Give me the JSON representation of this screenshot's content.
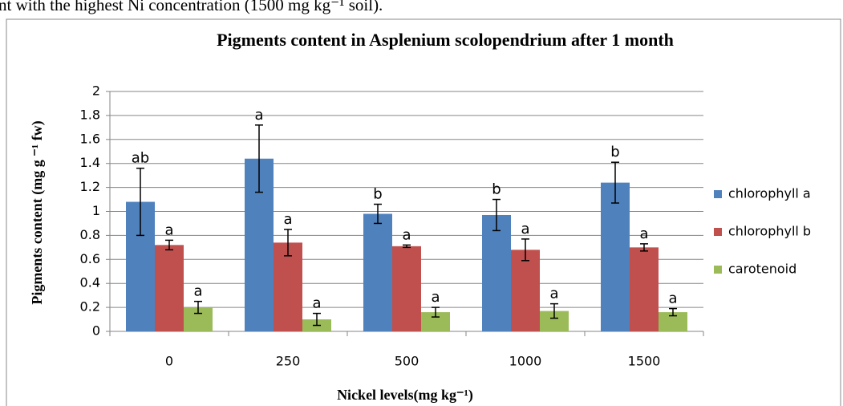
{
  "header_text": "nt with the highest Ni concentration (1500 mg kg⁻¹ soil).",
  "chart_data": {
    "type": "bar",
    "title": "Pigments content in Asplenium scolopendrium after 1 month",
    "y_label": "Pigments content (mg g ⁻¹ fw)",
    "x_label": "Nickel levels(mg kg⁻¹)",
    "categories": [
      "0",
      "250",
      "500",
      "1000",
      "1500"
    ],
    "series": [
      {
        "name": "chlorophyll a",
        "color": "#4f81bd",
        "values": [
          1.08,
          1.44,
          0.98,
          0.97,
          1.24
        ],
        "errors": [
          0.28,
          0.28,
          0.08,
          0.13,
          0.17
        ],
        "labels": [
          "ab",
          "a",
          "b",
          "b",
          "b"
        ]
      },
      {
        "name": "chlorophyll b",
        "color": "#c0504d",
        "values": [
          0.72,
          0.74,
          0.71,
          0.68,
          0.7
        ],
        "errors": [
          0.04,
          0.11,
          0.01,
          0.09,
          0.03
        ],
        "labels": [
          "a",
          "a",
          "a",
          "a",
          "a"
        ]
      },
      {
        "name": "carotenoid",
        "color": "#9bbb59",
        "values": [
          0.2,
          0.1,
          0.16,
          0.17,
          0.16
        ],
        "errors": [
          0.05,
          0.05,
          0.04,
          0.06,
          0.03
        ],
        "labels": [
          "a",
          "a",
          "a",
          "a",
          "a"
        ]
      }
    ],
    "ylim": [
      0,
      2
    ],
    "yticks": [
      0,
      0.2,
      0.4,
      0.6,
      0.8,
      1,
      1.2,
      1.4,
      1.6,
      1.8,
      2
    ],
    "grid": true,
    "legend": "right"
  }
}
